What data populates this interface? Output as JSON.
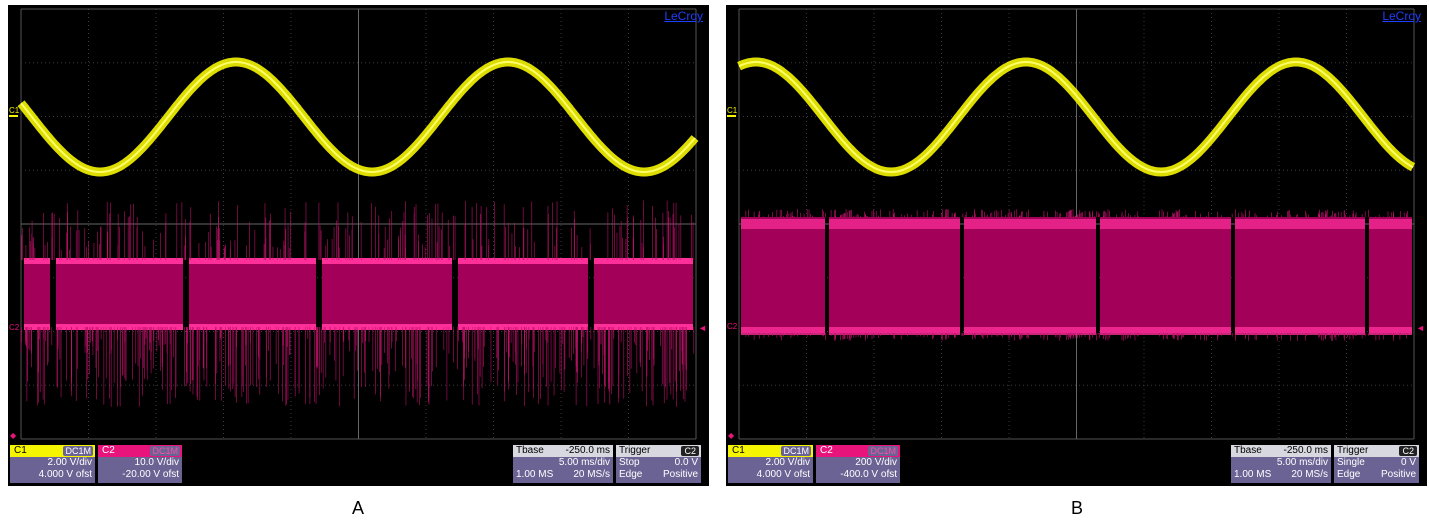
{
  "panels": [
    {
      "id": "A",
      "caption": "A",
      "brand": "LeCroy",
      "c1": {
        "label": "C1",
        "coupling": "DC1M",
        "vdiv": "2.00 V/div",
        "offset": "4.000 V ofst"
      },
      "c2": {
        "label": "C2",
        "coupling": "DC1M",
        "vdiv": "10.0 V/div",
        "offset": "-20.00 V ofst"
      },
      "tbase": {
        "title": "Tbase",
        "value": "-250.0 ms",
        "tdiv": "5.00 ms/div",
        "samples": "1.00 MS",
        "rate": "20 MS/s"
      },
      "trigger": {
        "title": "Trigger",
        "channel": "C2",
        "mode": "Stop",
        "level": "0.0 V",
        "type": "Edge",
        "slope": "Positive"
      },
      "traces": {
        "c1_color": "#f5f500",
        "c2_color": "#e8147c",
        "spikes": true
      }
    },
    {
      "id": "B",
      "caption": "B",
      "brand": "LeCroy",
      "c1": {
        "label": "C1",
        "coupling": "DC1M",
        "vdiv": "2.00 V/div",
        "offset": "4.000 V ofst"
      },
      "c2": {
        "label": "C2",
        "coupling": "DC1M",
        "vdiv": "200 V/div",
        "offset": "-400.0 V ofst"
      },
      "tbase": {
        "title": "Tbase",
        "value": "-250.0 ms",
        "tdiv": "5.00 ms/div",
        "samples": "1.00 MS",
        "rate": "20 MS/s"
      },
      "trigger": {
        "title": "Trigger",
        "channel": "C2",
        "mode": "Single",
        "level": "0 V",
        "type": "Edge",
        "slope": "Positive"
      },
      "traces": {
        "c1_color": "#f5f500",
        "c2_color": "#e8147c",
        "spikes": false
      }
    }
  ]
}
